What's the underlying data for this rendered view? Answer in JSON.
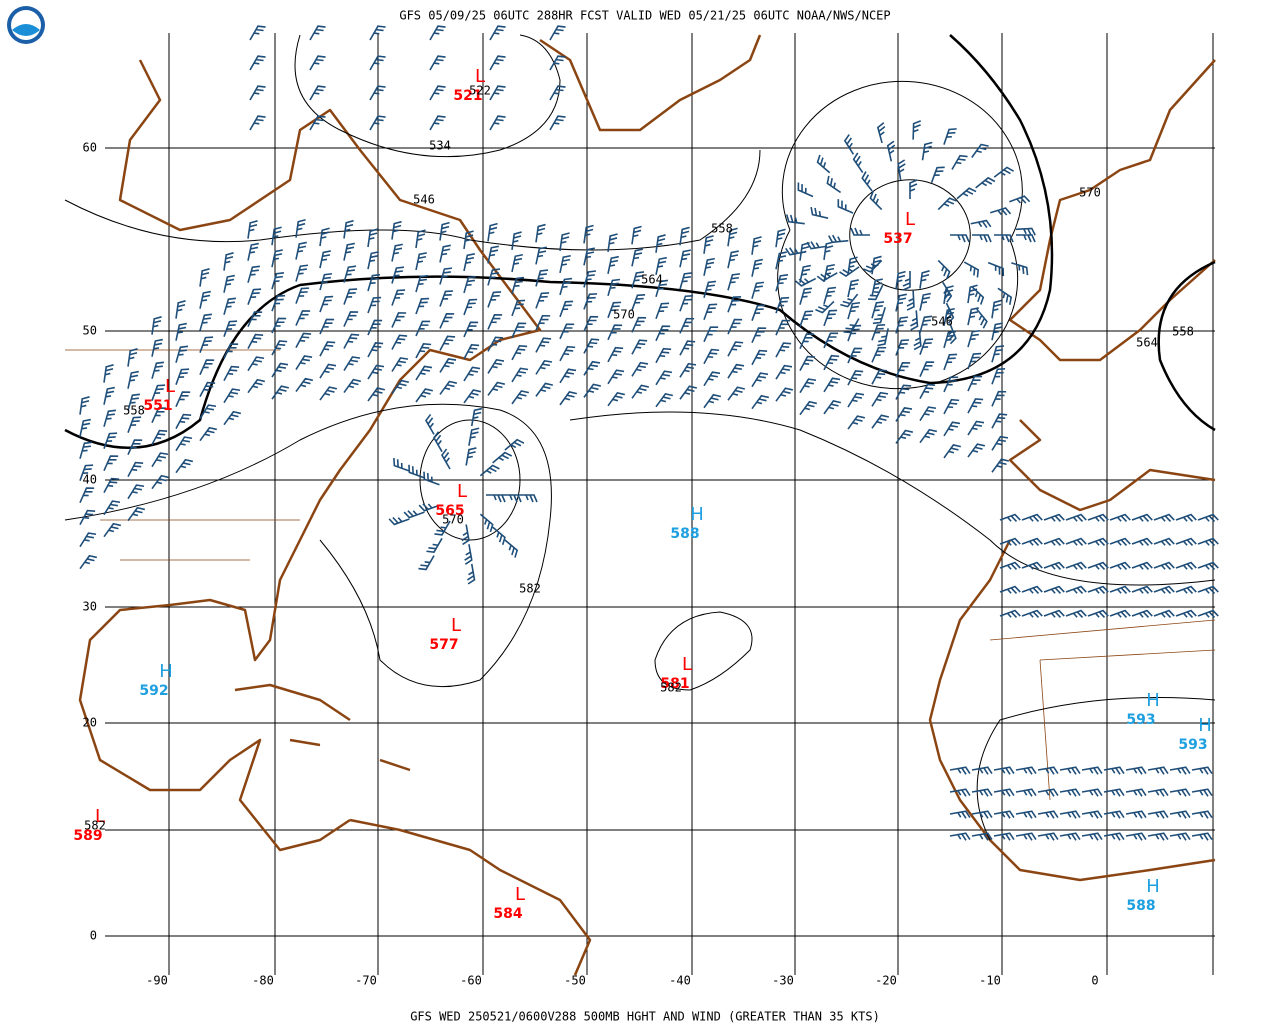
{
  "header": {
    "title": "GFS 05/09/25 06UTC 288HR FCST VALID WED 05/21/25 06UTC NOAA/NWS/NCEP"
  },
  "footer": {
    "caption": "GFS WED 250521/0600V288 500MB HGHT AND WIND (GREATER THAN 35 KTS)"
  },
  "axes": {
    "lat_labels": [
      "60",
      "50",
      "40",
      "30",
      "20",
      "0"
    ],
    "lon_labels": [
      "-90",
      "-80",
      "-70",
      "-60",
      "-50",
      "-40",
      "-30",
      "-20",
      "-10",
      "0"
    ]
  },
  "systems": [
    {
      "letter": "L",
      "value": "521"
    },
    {
      "letter": "L",
      "value": "537"
    },
    {
      "letter": "L",
      "value": "551"
    },
    {
      "letter": "L",
      "value": "565"
    },
    {
      "letter": "L",
      "value": "577"
    },
    {
      "letter": "L",
      "value": "581"
    },
    {
      "letter": "L",
      "value": "589"
    },
    {
      "letter": "L",
      "value": "584"
    },
    {
      "letter": "H",
      "value": "588"
    },
    {
      "letter": "H",
      "value": "592"
    },
    {
      "letter": "H",
      "value": "593"
    },
    {
      "letter": "H",
      "value": "593"
    },
    {
      "letter": "H",
      "value": "588"
    }
  ],
  "contour_labels": [
    "522",
    "534",
    "546",
    "558",
    "564",
    "570",
    "546",
    "570",
    "564",
    "558",
    "558",
    "570",
    "582",
    "582",
    "582"
  ]
}
